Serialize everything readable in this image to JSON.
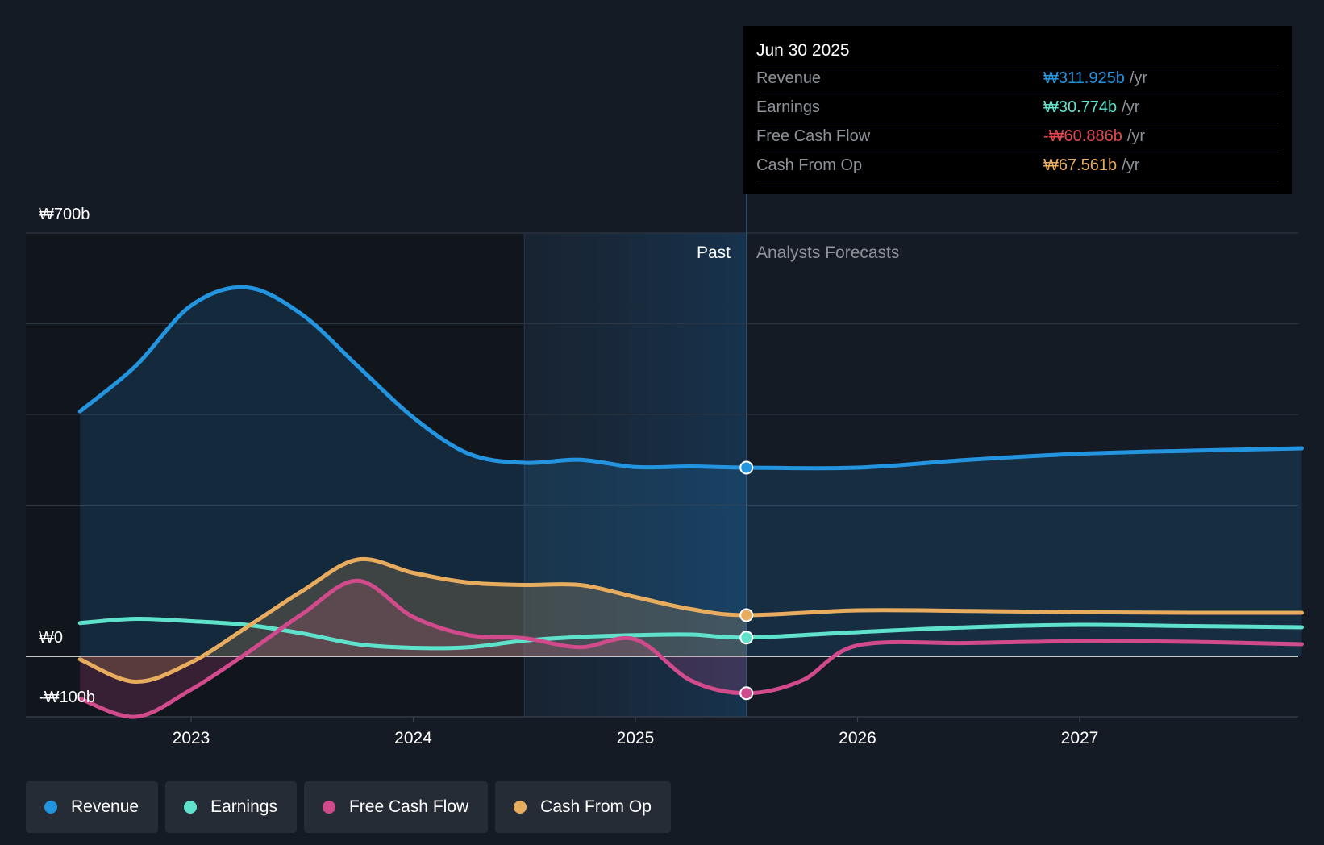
{
  "chart_data": {
    "type": "line",
    "currency_symbol": "₩",
    "y_axis_labels": [
      "₩700b",
      "₩0",
      "-₩100b"
    ],
    "x_ticks": [
      "2023",
      "2024",
      "2025",
      "2026",
      "2027"
    ],
    "ylim": [
      -100,
      700
    ],
    "xlim": [
      2022.3,
      2028.0
    ],
    "past_label": "Past",
    "forecast_label": "Analysts Forecasts",
    "past_end": 2025.5,
    "highlight_start": 2024.5,
    "series": [
      {
        "name": "Revenue",
        "color": "#2394df",
        "fill": true,
        "points": [
          [
            2022.5,
            405
          ],
          [
            2022.75,
            480
          ],
          [
            2023.0,
            580
          ],
          [
            2023.25,
            610
          ],
          [
            2023.5,
            565
          ],
          [
            2023.75,
            480
          ],
          [
            2024.0,
            395
          ],
          [
            2024.25,
            335
          ],
          [
            2024.5,
            320
          ],
          [
            2024.75,
            325
          ],
          [
            2025.0,
            313
          ],
          [
            2025.25,
            314
          ],
          [
            2025.5,
            312
          ],
          [
            2026.0,
            312
          ],
          [
            2026.5,
            325
          ],
          [
            2027.0,
            335
          ],
          [
            2027.5,
            340
          ],
          [
            2028.0,
            344
          ]
        ]
      },
      {
        "name": "Earnings",
        "color": "#5ee2cc",
        "fill": false,
        "points": [
          [
            2022.5,
            55
          ],
          [
            2022.75,
            62
          ],
          [
            2023.0,
            58
          ],
          [
            2023.25,
            52
          ],
          [
            2023.5,
            38
          ],
          [
            2023.75,
            20
          ],
          [
            2024.0,
            14
          ],
          [
            2024.25,
            15
          ],
          [
            2024.5,
            26
          ],
          [
            2024.75,
            32
          ],
          [
            2025.0,
            35
          ],
          [
            2025.25,
            36
          ],
          [
            2025.5,
            31
          ],
          [
            2026.0,
            40
          ],
          [
            2026.5,
            48
          ],
          [
            2027.0,
            52
          ],
          [
            2027.5,
            50
          ],
          [
            2028.0,
            48
          ]
        ]
      },
      {
        "name": "Free Cash Flow",
        "color": "#d14a8b",
        "fill": true,
        "points": [
          [
            2022.5,
            -70
          ],
          [
            2022.75,
            -100
          ],
          [
            2023.0,
            -55
          ],
          [
            2023.25,
            5
          ],
          [
            2023.5,
            70
          ],
          [
            2023.75,
            125
          ],
          [
            2024.0,
            65
          ],
          [
            2024.25,
            35
          ],
          [
            2024.5,
            30
          ],
          [
            2024.75,
            15
          ],
          [
            2025.0,
            28
          ],
          [
            2025.25,
            -40
          ],
          [
            2025.5,
            -61
          ],
          [
            2025.75,
            -40
          ],
          [
            2026.0,
            18
          ],
          [
            2026.5,
            22
          ],
          [
            2027.0,
            25
          ],
          [
            2027.5,
            24
          ],
          [
            2028.0,
            20
          ]
        ]
      },
      {
        "name": "Cash From Op",
        "color": "#e8ac5e",
        "fill": true,
        "points": [
          [
            2022.5,
            -5
          ],
          [
            2022.75,
            -42
          ],
          [
            2023.0,
            -10
          ],
          [
            2023.25,
            48
          ],
          [
            2023.5,
            108
          ],
          [
            2023.75,
            160
          ],
          [
            2024.0,
            138
          ],
          [
            2024.25,
            122
          ],
          [
            2024.5,
            118
          ],
          [
            2024.75,
            118
          ],
          [
            2025.0,
            98
          ],
          [
            2025.25,
            78
          ],
          [
            2025.5,
            68
          ],
          [
            2026.0,
            76
          ],
          [
            2026.5,
            75
          ],
          [
            2027.0,
            73
          ],
          [
            2027.5,
            72
          ],
          [
            2028.0,
            72
          ]
        ]
      }
    ]
  },
  "tooltip": {
    "date": "Jun 30 2025",
    "rows": [
      {
        "label": "Revenue",
        "value": "₩311.925b",
        "unit": "/yr",
        "color": "#2394df"
      },
      {
        "label": "Earnings",
        "value": "₩30.774b",
        "unit": "/yr",
        "color": "#5ee2cc"
      },
      {
        "label": "Free Cash Flow",
        "value": "-₩60.886b",
        "unit": "/yr",
        "color": "#e5484d"
      },
      {
        "label": "Cash From Op",
        "value": "₩67.561b",
        "unit": "/yr",
        "color": "#e8ac5e"
      }
    ]
  },
  "legend": [
    {
      "label": "Revenue",
      "color": "#2394df"
    },
    {
      "label": "Earnings",
      "color": "#5ee2cc"
    },
    {
      "label": "Free Cash Flow",
      "color": "#d14a8b"
    },
    {
      "label": "Cash From Op",
      "color": "#e8ac5e"
    }
  ]
}
